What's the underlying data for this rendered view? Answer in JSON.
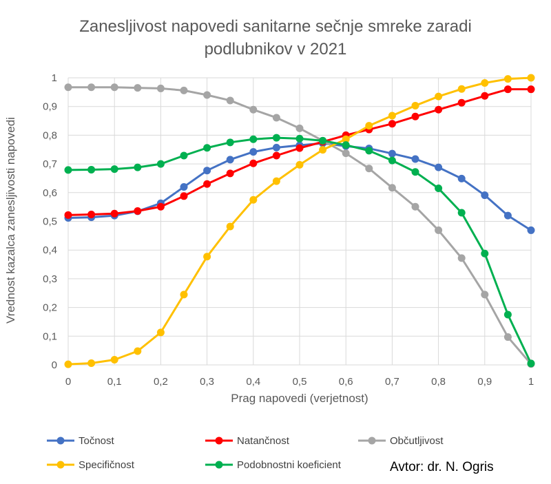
{
  "chart_data": {
    "type": "line",
    "title": "Zanesljivost napovedi sanitarne sečnje smreke zaradi podlubnikov v 2021",
    "title_lines": [
      "Zanesljivost napovedi sanitarne sečnje smreke zaradi",
      "podlubnikov v 2021"
    ],
    "xlabel": "Prag napovedi (verjetnost)",
    "ylabel": "Vrednost kazalca zanesljivosti napovedi",
    "xlim": [
      0,
      1
    ],
    "ylim": [
      0,
      1
    ],
    "grid": true,
    "legend_position": "bottom",
    "x_tick_values": [
      0,
      0.1,
      0.2,
      0.3,
      0.4,
      0.5,
      0.6,
      0.7,
      0.8,
      0.9,
      1
    ],
    "x_tick_labels": [
      "0",
      "0,1",
      "0,2",
      "0,3",
      "0,4",
      "0,5",
      "0,6",
      "0,7",
      "0,8",
      "0,9",
      "1"
    ],
    "y_tick_values": [
      0,
      0.1,
      0.2,
      0.3,
      0.4,
      0.5,
      0.6,
      0.7,
      0.8,
      0.9,
      1
    ],
    "y_tick_labels": [
      "0",
      "0,1",
      "0,2",
      "0,3",
      "0,4",
      "0,5",
      "0,6",
      "0,7",
      "0,8",
      "0,9",
      "1"
    ],
    "x": [
      0,
      0.05,
      0.1,
      0.15,
      0.2,
      0.25,
      0.3,
      0.35,
      0.4,
      0.45,
      0.5,
      0.55,
      0.6,
      0.65,
      0.7,
      0.75,
      0.8,
      0.85,
      0.9,
      0.95,
      1
    ],
    "series": [
      {
        "name": "Točnost",
        "color": "#4472C4",
        "values": [
          0.512,
          0.514,
          0.52,
          0.535,
          0.563,
          0.62,
          0.677,
          0.715,
          0.742,
          0.757,
          0.765,
          0.772,
          0.762,
          0.754,
          0.736,
          0.717,
          0.688,
          0.649,
          0.591,
          0.52,
          0.469
        ]
      },
      {
        "name": "Natančnost",
        "color": "#FF0000",
        "values": [
          0.522,
          0.524,
          0.527,
          0.536,
          0.551,
          0.588,
          0.63,
          0.667,
          0.702,
          0.729,
          0.755,
          0.777,
          0.8,
          0.82,
          0.84,
          0.865,
          0.889,
          0.913,
          0.937,
          0.96,
          0.96
        ]
      },
      {
        "name": "Občutljivost",
        "color": "#A5A5A5",
        "values": [
          0.967,
          0.967,
          0.967,
          0.965,
          0.963,
          0.956,
          0.94,
          0.921,
          0.889,
          0.861,
          0.824,
          0.781,
          0.737,
          0.684,
          0.617,
          0.551,
          0.469,
          0.372,
          0.245,
          0.097,
          0.003
        ]
      },
      {
        "name": "Specifičnost",
        "color": "#FFC000",
        "values": [
          0.002,
          0.006,
          0.018,
          0.048,
          0.113,
          0.245,
          0.377,
          0.482,
          0.575,
          0.64,
          0.697,
          0.749,
          0.786,
          0.833,
          0.868,
          0.903,
          0.935,
          0.961,
          0.982,
          0.996,
          1.0
        ]
      },
      {
        "name": "Podobnostni koeficient",
        "color": "#00B050",
        "values": [
          0.679,
          0.68,
          0.682,
          0.688,
          0.7,
          0.729,
          0.756,
          0.775,
          0.786,
          0.791,
          0.788,
          0.781,
          0.766,
          0.746,
          0.712,
          0.672,
          0.615,
          0.53,
          0.388,
          0.175,
          0.005
        ]
      }
    ]
  },
  "author": "Avtor: dr. N. Ogris"
}
